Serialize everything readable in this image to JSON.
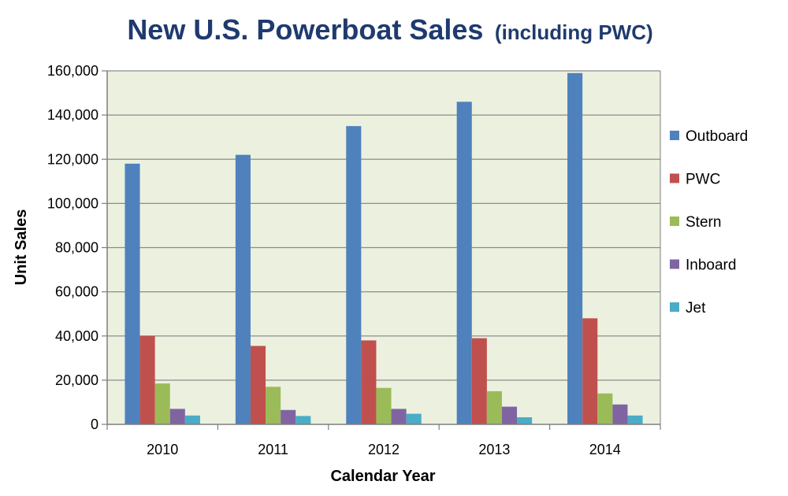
{
  "chart_data": {
    "type": "bar",
    "title": "New U.S. Powerboat Sales",
    "subtitle": "(including PWC)",
    "xlabel": "Calendar Year",
    "ylabel": "Unit Sales",
    "ylim": [
      0,
      160000
    ],
    "yticks": [
      0,
      20000,
      40000,
      60000,
      80000,
      100000,
      120000,
      140000,
      160000
    ],
    "ytick_labels": [
      "0",
      "20,000",
      "40,000",
      "60,000",
      "80,000",
      "100,000",
      "120,000",
      "140,000",
      "160,000"
    ],
    "grid": true,
    "legend_position": "right",
    "plot_background": "#ebf1de",
    "categories": [
      "2010",
      "2011",
      "2012",
      "2013",
      "2014"
    ],
    "series": [
      {
        "name": "Outboard",
        "color": "#4f81bd",
        "values": [
          118000,
          122000,
          135000,
          146000,
          159000
        ]
      },
      {
        "name": "PWC",
        "color": "#c0504d",
        "values": [
          40000,
          35500,
          38000,
          39000,
          48000
        ]
      },
      {
        "name": "Stern",
        "color": "#9bbb59",
        "values": [
          18500,
          17000,
          16500,
          15000,
          14000
        ]
      },
      {
        "name": "Inboard",
        "color": "#8064a2",
        "values": [
          7000,
          6500,
          7000,
          8000,
          9000
        ]
      },
      {
        "name": "Jet",
        "color": "#4bacc6",
        "values": [
          4000,
          3800,
          4800,
          3200,
          4000
        ]
      }
    ]
  }
}
